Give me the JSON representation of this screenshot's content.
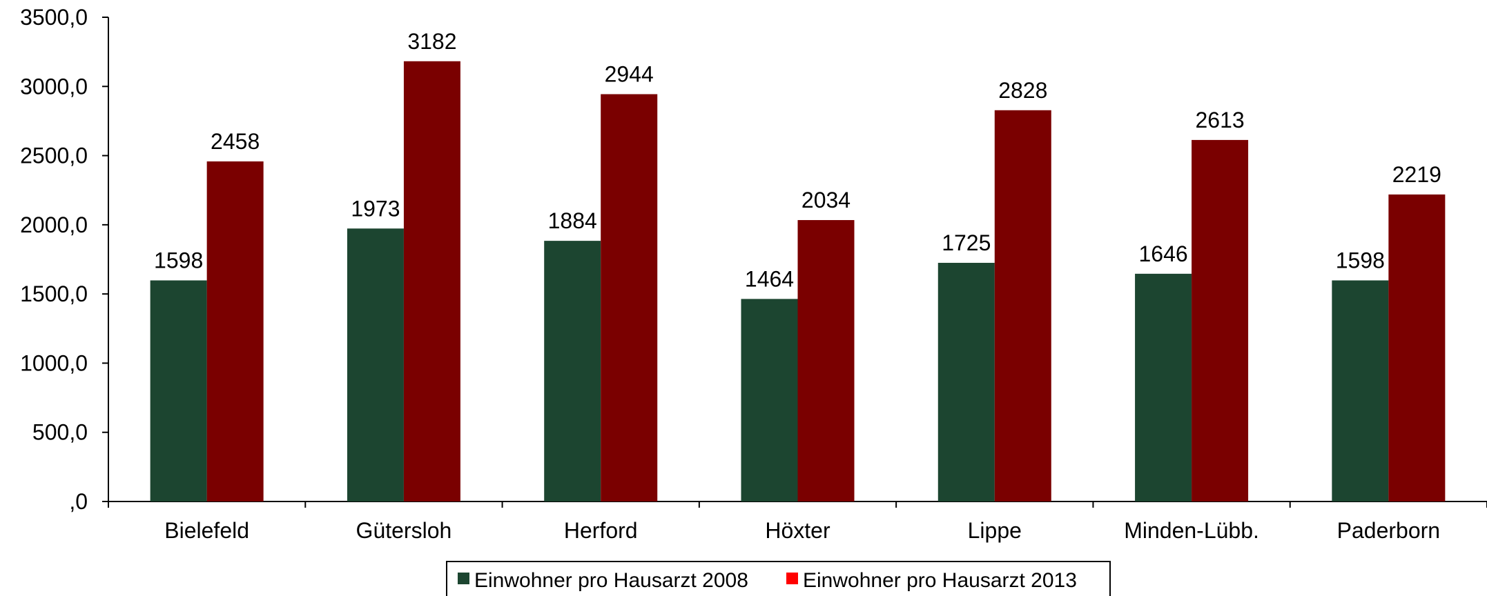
{
  "chart_data": {
    "type": "bar",
    "categories": [
      "Bielefeld",
      "Gütersloh",
      "Herford",
      "Höxter",
      "Lippe",
      "Minden-Lübb.",
      "Paderborn"
    ],
    "series": [
      {
        "name": "Einwohner pro Hausarzt 2008",
        "color": "#1c4530",
        "values": [
          1598,
          1973,
          1884,
          1464,
          1725,
          1646,
          1598
        ]
      },
      {
        "name": "Einwohner pro Hausarzt 2013",
        "color": "#7a0000",
        "legend_color": "#ff0000",
        "values": [
          2458,
          3182,
          2944,
          2034,
          2828,
          2613,
          2219
        ]
      }
    ],
    "data_labels": [
      [
        "1598",
        "1973",
        "1884",
        "1464",
        "1725",
        "1646",
        "1598"
      ],
      [
        "2458",
        "3182",
        "2944",
        "2034",
        "2828",
        "2613",
        "2219"
      ]
    ],
    "yticks": [
      0,
      500,
      1000,
      1500,
      2000,
      2500,
      3000,
      3500
    ],
    "ytick_labels": [
      ",0",
      "500,0",
      "1000,0",
      "1500,0",
      "2000,0",
      "2500,0",
      "3000,0",
      "3500,0"
    ],
    "ylim": [
      0,
      3500
    ],
    "title": "",
    "xlabel": "",
    "ylabel": "",
    "grid": false,
    "legend": "bottom"
  }
}
